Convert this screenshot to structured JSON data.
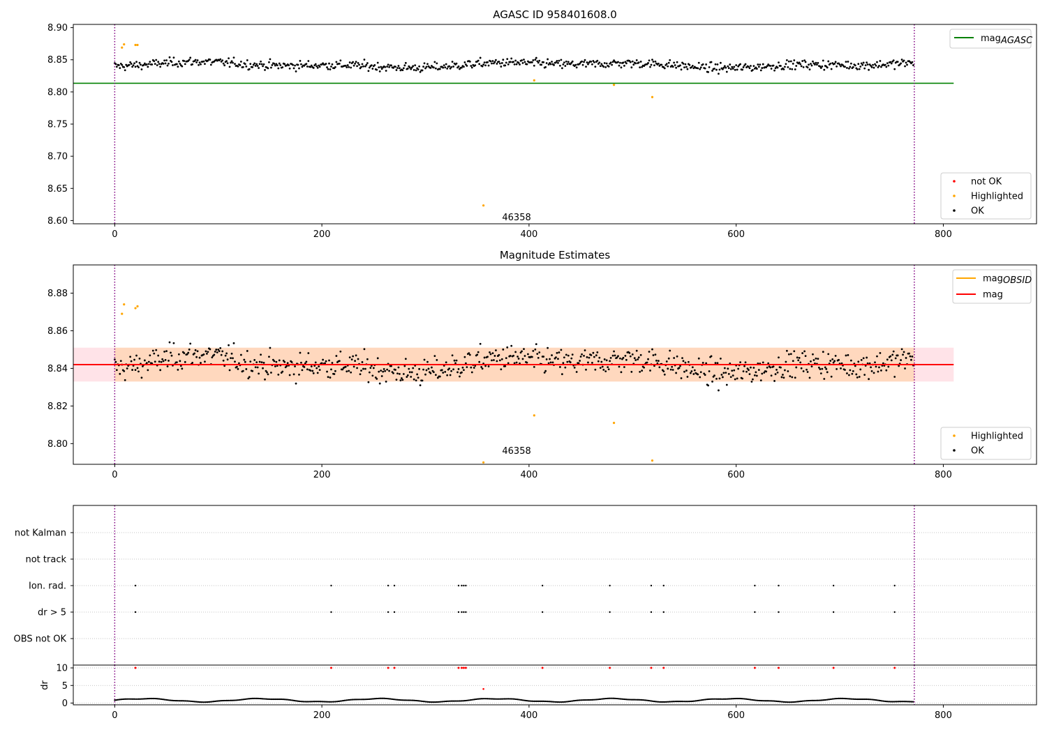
{
  "chart_data": [
    {
      "type": "scatter",
      "title": "AGASC ID 958401608.0",
      "xlim": [
        -40,
        890
      ],
      "ylim": [
        8.595,
        8.905
      ],
      "xticks": [
        0,
        200,
        400,
        600,
        800
      ],
      "yticks": [
        "8.60",
        "8.65",
        "8.70",
        "8.75",
        "8.80",
        "8.85",
        "8.90"
      ],
      "ytick_values": [
        8.6,
        8.65,
        8.7,
        8.75,
        8.8,
        8.85,
        8.9
      ],
      "hline": {
        "name": "mag_AGASC",
        "y": 8.8135,
        "x_range": [
          -40,
          810
        ],
        "color": "#008000"
      },
      "vlines": [
        0,
        772
      ],
      "ok_series": {
        "name": "OK",
        "color": "#000000",
        "n": 772,
        "y_center": 8.842,
        "y_spread": 0.009
      },
      "highlighted": {
        "name": "Highlighted",
        "color": "#ffa500",
        "points": [
          [
            7,
            8.869
          ],
          [
            9,
            8.874
          ],
          [
            20,
            8.873
          ],
          [
            22,
            8.873
          ],
          [
            356,
            8.6235
          ],
          [
            405,
            8.818
          ],
          [
            482,
            8.811
          ],
          [
            519,
            8.792
          ]
        ]
      },
      "not_ok": {
        "name": "not OK",
        "color": "#ff0000"
      },
      "annotations": [
        {
          "text": "46358",
          "x": 370,
          "y": 8.605
        }
      ],
      "legends": [
        {
          "position": "upper-right",
          "entries": [
            {
              "label": "mag",
              "sub": "AGASC",
              "kind": "line",
              "color": "#008000"
            }
          ]
        },
        {
          "position": "lower-right",
          "entries": [
            {
              "label": "not OK",
              "kind": "dot",
              "color": "#ff0000"
            },
            {
              "label": "Highlighted",
              "kind": "dot",
              "color": "#ffa500"
            },
            {
              "label": "OK",
              "kind": "dot",
              "color": "#000000"
            }
          ]
        }
      ]
    },
    {
      "type": "scatter",
      "title": "Magnitude Estimates",
      "xlim": [
        -40,
        890
      ],
      "ylim": [
        8.789,
        8.895
      ],
      "xticks": [
        0,
        200,
        400,
        600,
        800
      ],
      "yticks": [
        "8.80",
        "8.82",
        "8.84",
        "8.86",
        "8.88"
      ],
      "ytick_values": [
        8.8,
        8.82,
        8.84,
        8.86,
        8.88
      ],
      "mag_line": {
        "name": "mag",
        "y": 8.842,
        "x_range": [
          -40,
          810
        ],
        "color": "#ff0000"
      },
      "band_outer": {
        "y": [
          8.833,
          8.851
        ],
        "x_range": [
          -40,
          810
        ],
        "color": "#ffc0cb"
      },
      "band_obsid": {
        "y": [
          8.833,
          8.851
        ],
        "x_range": [
          0,
          772
        ],
        "color": "#ffa500"
      },
      "vlines": [
        0,
        772
      ],
      "ok_series": {
        "name": "OK",
        "color": "#000000",
        "n": 772,
        "y_center": 8.842,
        "y_spread": 0.009
      },
      "highlighted": {
        "name": "Highlighted",
        "color": "#ffa500",
        "points": [
          [
            7,
            8.869
          ],
          [
            9,
            8.874
          ],
          [
            20,
            8.872
          ],
          [
            22,
            8.873
          ],
          [
            356,
            8.79
          ],
          [
            405,
            8.815
          ],
          [
            482,
            8.811
          ],
          [
            519,
            8.791
          ]
        ]
      },
      "annotations": [
        {
          "text": "46358",
          "x": 370,
          "y": 8.793
        }
      ],
      "legends": [
        {
          "position": "upper-right",
          "entries": [
            {
              "label": "mag",
              "sub": "OBSID",
              "kind": "line",
              "color": "#ffa500"
            },
            {
              "label": "mag",
              "kind": "line",
              "color": "#ff0000"
            }
          ]
        },
        {
          "position": "lower-right",
          "entries": [
            {
              "label": "Highlighted",
              "kind": "dot",
              "color": "#ffa500"
            },
            {
              "label": "OK",
              "kind": "dot",
              "color": "#000000"
            }
          ]
        }
      ]
    },
    {
      "type": "scatter",
      "title": "",
      "xlim": [
        -40,
        890
      ],
      "categories": [
        "not Kalman",
        "not track",
        "Ion. rad.",
        "dr > 5",
        "OBS not OK"
      ],
      "flag_x": [
        20,
        209,
        264,
        270,
        332,
        335,
        337,
        339,
        413,
        478,
        518,
        530,
        618,
        641,
        694,
        753
      ],
      "vlines": [
        0,
        772
      ],
      "grid": true
    },
    {
      "type": "scatter",
      "title": "",
      "ylabel": "dr",
      "xlim": [
        -40,
        890
      ],
      "ylim": [
        -0.5,
        10.8
      ],
      "xticks": [
        0,
        200,
        400,
        600,
        800
      ],
      "yticks": [
        "0",
        "5",
        "10"
      ],
      "ytick_values": [
        0,
        5,
        10
      ],
      "dr_series": {
        "color": "#000000",
        "n": 772,
        "y_min": 0.2,
        "y_max": 1.4
      },
      "high_dr": {
        "color": "#ff0000",
        "x": [
          20,
          209,
          264,
          270,
          332,
          335,
          337,
          339,
          413,
          478,
          518,
          530,
          618,
          641,
          694,
          753
        ],
        "y": 10
      },
      "outlier": {
        "color": "#ff0000",
        "x": 356,
        "y": 4
      },
      "vlines": [
        0,
        772
      ],
      "grid": true
    }
  ]
}
